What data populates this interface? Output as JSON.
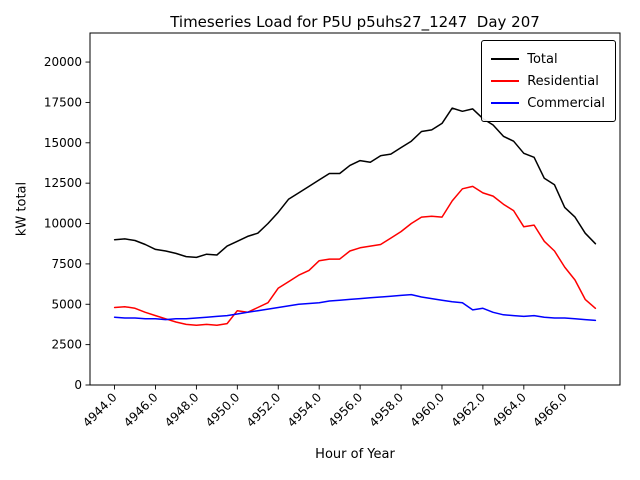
{
  "chart_data": {
    "type": "line",
    "title": "Timeseries Load for P5U p5uhs27_1247  Day 207",
    "xlabel": "Hour of Year",
    "ylabel": "kW total",
    "legend_position": "upper right",
    "grid": false,
    "xlim": [
      4942.8,
      4968.7
    ],
    "ylim": [
      0,
      21800
    ],
    "xticks": [
      4944,
      4946,
      4948,
      4950,
      4952,
      4954,
      4956,
      4958,
      4960,
      4962,
      4964,
      4966
    ],
    "xtick_labels": [
      "4944.0",
      "4946.0",
      "4948.0",
      "4950.0",
      "4952.0",
      "4954.0",
      "4956.0",
      "4958.0",
      "4960.0",
      "4962.0",
      "4964.0",
      "4966.0"
    ],
    "yticks": [
      0,
      2500,
      5000,
      7500,
      10000,
      12500,
      15000,
      17500,
      20000
    ],
    "ytick_labels": [
      "0",
      "2500",
      "5000",
      "7500",
      "10000",
      "12500",
      "15000",
      "17500",
      "20000"
    ],
    "x": [
      4944,
      4944.5,
      4945,
      4945.5,
      4946,
      4946.5,
      4947,
      4947.5,
      4948,
      4948.5,
      4949,
      4949.5,
      4950,
      4950.5,
      4951,
      4951.5,
      4952,
      4952.5,
      4953,
      4953.5,
      4954,
      4954.5,
      4955,
      4955.5,
      4956,
      4956.5,
      4957,
      4957.5,
      4958,
      4958.5,
      4959,
      4959.5,
      4960,
      4960.5,
      4961,
      4961.5,
      4962,
      4962.5,
      4963,
      4963.5,
      4964,
      4964.5,
      4965,
      4965.5,
      4966,
      4966.5,
      4967,
      4967.5
    ],
    "series": [
      {
        "name": "Total",
        "color": "#000000",
        "values": [
          9000,
          9050,
          8950,
          8700,
          8400,
          8300,
          8150,
          7950,
          7900,
          8100,
          8050,
          8600,
          8900,
          9200,
          9400,
          10000,
          10700,
          11500,
          11900,
          12300,
          12700,
          13100,
          13100,
          13600,
          13900,
          13800,
          14200,
          14300,
          14700,
          15100,
          15700,
          15800,
          16200,
          17150,
          16950,
          17100,
          16500,
          16100,
          15400,
          15100,
          14350,
          14100,
          12800,
          12400,
          11000,
          10400,
          9400,
          8750
        ]
      },
      {
        "name": "Residential",
        "color": "#ff0000",
        "values": [
          4800,
          4850,
          4750,
          4500,
          4300,
          4100,
          3900,
          3750,
          3700,
          3750,
          3700,
          3800,
          4600,
          4500,
          4800,
          5100,
          6000,
          6400,
          6800,
          7100,
          7700,
          7800,
          7800,
          8300,
          8500,
          8600,
          8700,
          9100,
          9500,
          10000,
          10400,
          10450,
          10400,
          11400,
          12150,
          12300,
          11900,
          11700,
          11200,
          10800,
          9800,
          9900,
          8900,
          8300,
          7300,
          6500,
          5300,
          4750
        ]
      },
      {
        "name": "Commercial",
        "color": "#0000ff",
        "values": [
          4200,
          4150,
          4150,
          4100,
          4100,
          4050,
          4100,
          4100,
          4150,
          4200,
          4250,
          4300,
          4400,
          4500,
          4600,
          4700,
          4800,
          4900,
          5000,
          5050,
          5100,
          5200,
          5250,
          5300,
          5350,
          5400,
          5450,
          5500,
          5550,
          5600,
          5450,
          5350,
          5250,
          5150,
          5100,
          4650,
          4750,
          4500,
          4350,
          4300,
          4250,
          4300,
          4200,
          4150,
          4150,
          4100,
          4050,
          4000
        ]
      }
    ]
  }
}
